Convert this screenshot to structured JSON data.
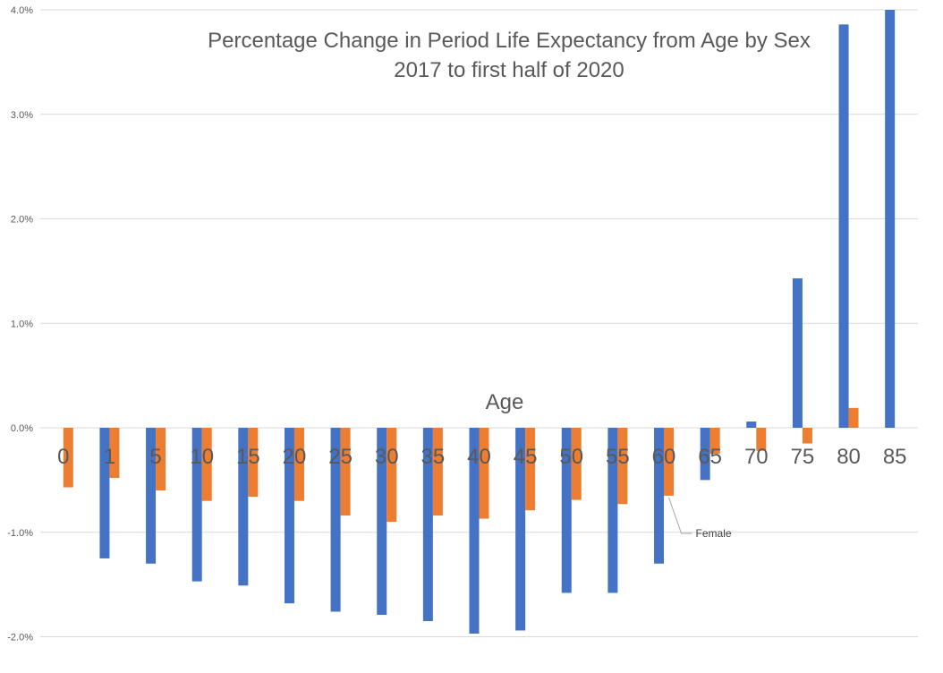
{
  "chart_data": {
    "type": "bar",
    "title": "Percentage Change in Period Life Expectancy from Age by Sex",
    "subtitle": "2017 to first half of 2020",
    "xlabel": "Age",
    "ylabel": "",
    "categories": [
      "0",
      "1",
      "5",
      "10",
      "15",
      "20",
      "25",
      "30",
      "35",
      "40",
      "45",
      "50",
      "55",
      "60",
      "65",
      "70",
      "75",
      "80",
      "85"
    ],
    "ylim": [
      -2.0,
      4.0
    ],
    "ytick_values": [
      -2.0,
      -1.0,
      0.0,
      1.0,
      2.0,
      3.0,
      4.0
    ],
    "ytick_labels": [
      "-2.0%",
      "-1.0%",
      "0.0%",
      "1.0%",
      "2.0%",
      "3.0%",
      "4.0%"
    ],
    "grid": true,
    "series": [
      {
        "color": "#4472c4",
        "values": [
          0,
          -1.25,
          -1.3,
          -1.47,
          -1.51,
          -1.68,
          -1.76,
          -1.79,
          -1.85,
          -1.97,
          -1.94,
          -1.58,
          -1.58,
          -1.3,
          -0.5,
          0.06,
          1.43,
          3.86,
          4.0
        ]
      },
      {
        "name": "Female",
        "color": "#ed7d31",
        "values": [
          -0.57,
          -0.48,
          -0.6,
          -0.7,
          -0.66,
          -0.7,
          -0.84,
          -0.9,
          -0.84,
          -0.87,
          -0.79,
          -0.69,
          -0.73,
          -0.65,
          -0.25,
          -0.22,
          -0.15,
          0.19,
          0
        ]
      }
    ],
    "annotations": [
      {
        "text": "Female",
        "series": 1,
        "category": "60"
      }
    ]
  }
}
